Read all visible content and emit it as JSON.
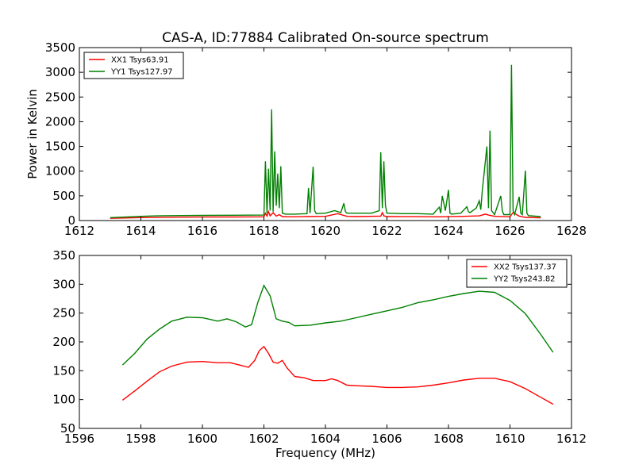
{
  "title": "CAS-A, ID:77884 Calibrated On-source spectrum",
  "colors": {
    "xx": "#ff0000",
    "yy": "#008000"
  },
  "chart_data": [
    {
      "type": "line",
      "title": "CAS-A, ID:77884 Calibrated On-source spectrum",
      "xlabel": "",
      "ylabel": "Power in Kelvin",
      "xlim": [
        1612,
        1628
      ],
      "ylim": [
        0,
        3500
      ],
      "xticks": [
        1612,
        1614,
        1616,
        1618,
        1620,
        1622,
        1624,
        1626,
        1628
      ],
      "yticks": [
        0,
        500,
        1000,
        1500,
        2000,
        2500,
        3000,
        3500
      ],
      "legend_placement": "top-left",
      "series": [
        {
          "name": "XX1 Tsys63.91",
          "color": "#ff0000",
          "x": [
            1613.0,
            1614.0,
            1615.0,
            1616.0,
            1617.0,
            1618.0,
            1618.05,
            1618.1,
            1618.15,
            1618.2,
            1618.3,
            1618.4,
            1618.5,
            1618.6,
            1618.8,
            1619.4,
            1620.0,
            1620.4,
            1620.7,
            1621.0,
            1621.8,
            1621.85,
            1621.9,
            1622.0,
            1623.0,
            1623.7,
            1624.0,
            1624.5,
            1625.0,
            1625.2,
            1625.3,
            1625.5,
            1626.0,
            1626.1,
            1626.3,
            1626.5,
            1627.0
          ],
          "y": [
            45,
            60,
            68,
            70,
            72,
            75,
            150,
            90,
            180,
            95,
            160,
            90,
            120,
            80,
            75,
            80,
            85,
            140,
            85,
            80,
            90,
            160,
            95,
            80,
            78,
            75,
            78,
            85,
            95,
            130,
            110,
            85,
            75,
            160,
            90,
            65,
            55
          ]
        },
        {
          "name": "YY1 Tsys127.97",
          "color": "#008000",
          "x": [
            1613.0,
            1613.5,
            1614.0,
            1614.5,
            1615.0,
            1616.0,
            1617.0,
            1618.0,
            1618.05,
            1618.1,
            1618.15,
            1618.2,
            1618.25,
            1618.3,
            1618.35,
            1618.4,
            1618.45,
            1618.5,
            1618.55,
            1618.6,
            1618.7,
            1619.0,
            1619.4,
            1619.45,
            1619.5,
            1619.6,
            1619.65,
            1619.7,
            1620.0,
            1620.3,
            1620.5,
            1620.6,
            1620.65,
            1620.7,
            1621.0,
            1621.5,
            1621.75,
            1621.8,
            1621.85,
            1621.9,
            1621.95,
            1622.0,
            1622.5,
            1623.0,
            1623.5,
            1623.7,
            1623.75,
            1623.8,
            1623.9,
            1624.0,
            1624.05,
            1624.1,
            1624.4,
            1624.6,
            1624.65,
            1624.7,
            1624.9,
            1625.0,
            1625.05,
            1625.1,
            1625.25,
            1625.3,
            1625.35,
            1625.4,
            1625.5,
            1625.7,
            1625.75,
            1625.8,
            1626.0,
            1626.05,
            1626.1,
            1626.15,
            1626.3,
            1626.35,
            1626.4,
            1626.5,
            1626.55,
            1626.6,
            1627.0
          ],
          "y": [
            60,
            70,
            85,
            95,
            100,
            105,
            108,
            110,
            1200,
            150,
            1050,
            200,
            2250,
            180,
            1400,
            300,
            950,
            250,
            1100,
            150,
            130,
            130,
            140,
            660,
            150,
            1090,
            200,
            140,
            150,
            200,
            160,
            350,
            180,
            150,
            150,
            150,
            200,
            1380,
            250,
            1200,
            300,
            150,
            140,
            140,
            130,
            270,
            150,
            500,
            200,
            620,
            150,
            130,
            150,
            280,
            180,
            160,
            250,
            400,
            220,
            600,
            1500,
            250,
            1820,
            200,
            120,
            500,
            200,
            120,
            120,
            3150,
            200,
            120,
            480,
            150,
            120,
            1010,
            150,
            100,
            80
          ]
        }
      ]
    },
    {
      "type": "line",
      "title": "",
      "xlabel": "Frequency (MHz)",
      "ylabel": "",
      "xlim": [
        1596,
        1612
      ],
      "ylim": [
        50,
        350
      ],
      "xticks": [
        1596,
        1598,
        1600,
        1602,
        1604,
        1606,
        1608,
        1610,
        1612
      ],
      "yticks": [
        50,
        100,
        150,
        200,
        250,
        300,
        350
      ],
      "legend_placement": "top-right",
      "series": [
        {
          "name": "XX2 Tsys137.37",
          "color": "#ff0000",
          "x": [
            1597.4,
            1597.8,
            1598.2,
            1598.6,
            1599.0,
            1599.5,
            1600.0,
            1600.5,
            1600.9,
            1601.2,
            1601.5,
            1601.7,
            1601.85,
            1602.0,
            1602.15,
            1602.3,
            1602.45,
            1602.6,
            1602.75,
            1603.0,
            1603.3,
            1603.6,
            1604.0,
            1604.2,
            1604.4,
            1604.7,
            1605.0,
            1605.5,
            1606.0,
            1606.5,
            1607.0,
            1607.5,
            1608.0,
            1608.5,
            1609.0,
            1609.5,
            1610.0,
            1610.5,
            1611.0,
            1611.4
          ],
          "y": [
            99,
            115,
            132,
            148,
            158,
            165,
            166,
            164,
            164,
            160,
            156,
            168,
            185,
            192,
            180,
            165,
            163,
            168,
            155,
            140,
            138,
            133,
            133,
            136,
            133,
            125,
            124,
            123,
            121,
            121,
            122,
            125,
            129,
            134,
            137,
            137,
            131,
            119,
            104,
            92
          ]
        },
        {
          "name": "YY2 Tsys243.82",
          "color": "#008000",
          "x": [
            1597.4,
            1597.8,
            1598.2,
            1598.6,
            1599.0,
            1599.5,
            1600.0,
            1600.5,
            1600.8,
            1601.1,
            1601.4,
            1601.6,
            1601.8,
            1602.0,
            1602.2,
            1602.4,
            1602.6,
            1602.8,
            1603.0,
            1603.5,
            1604.0,
            1604.5,
            1605.0,
            1605.5,
            1606.0,
            1606.5,
            1607.0,
            1607.5,
            1608.0,
            1608.5,
            1609.0,
            1609.5,
            1610.0,
            1610.5,
            1611.0,
            1611.4
          ],
          "y": [
            160,
            180,
            205,
            222,
            236,
            243,
            242,
            236,
            240,
            235,
            226,
            230,
            268,
            298,
            280,
            240,
            236,
            234,
            228,
            229,
            233,
            236,
            242,
            248,
            254,
            260,
            268,
            273,
            279,
            284,
            288,
            286,
            272,
            249,
            213,
            182
          ]
        }
      ]
    }
  ]
}
